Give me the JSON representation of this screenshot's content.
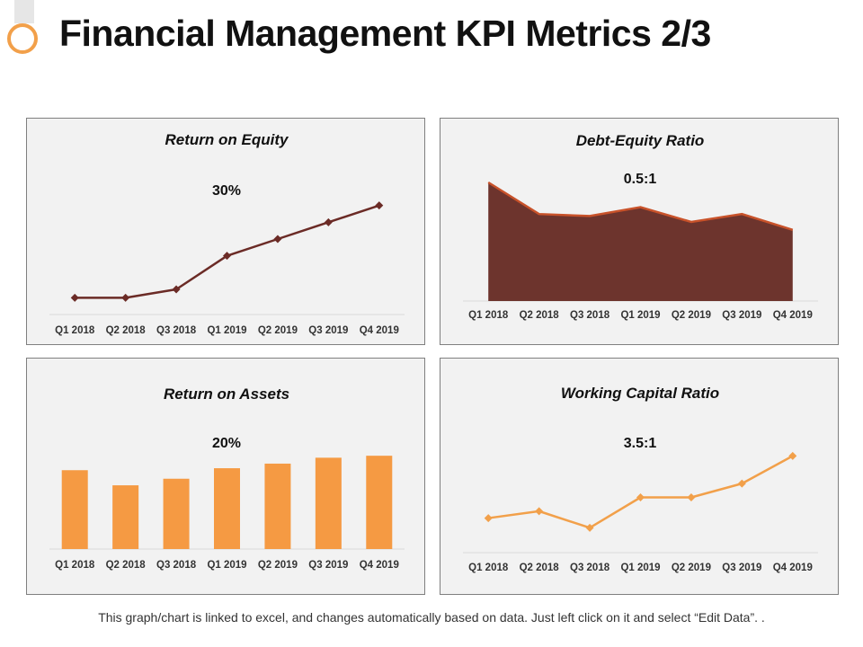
{
  "page": {
    "title": "Financial Management KPI Metrics 2/3",
    "footer": "This graph/chart is linked to excel, and changes automatically  based on data. Just left click on it and select “Edit Data”. ."
  },
  "colors": {
    "accent_orange": "#f2a04a",
    "dark_line": "#6b2b26",
    "area_fill": "#6d342d",
    "area_edge": "#c8522a",
    "bar_orange": "#f59a43",
    "panel_bg": "#f2f2f2"
  },
  "chart_data": [
    {
      "id": "roe",
      "type": "line",
      "title": "Return on Equity",
      "kpi": "30%",
      "categories": [
        "Q1 2018",
        "Q2 2018",
        "Q3 2018",
        "Q1 2019",
        "Q2 2019",
        "Q3 2019",
        "Q4 2019"
      ],
      "values": [
        2,
        2,
        3,
        7,
        9,
        11,
        13
      ],
      "ylim": [
        0,
        15
      ],
      "marker": "diamond",
      "color": "#6b2b26"
    },
    {
      "id": "de",
      "type": "area",
      "title": "Debt-Equity Ratio",
      "kpi": "0.5:1",
      "categories": [
        "Q1 2018",
        "Q2 2018",
        "Q3 2018",
        "Q1 2019",
        "Q2 2019",
        "Q3 2019",
        "Q4 2019"
      ],
      "values": [
        120,
        88,
        86,
        95,
        80,
        88,
        72
      ],
      "ylim": [
        0,
        130
      ],
      "color": "#6d342d"
    },
    {
      "id": "roa",
      "type": "bar",
      "title": "Return on Assets",
      "kpi": "20%",
      "categories": [
        "Q1 2018",
        "Q2 2018",
        "Q3 2018",
        "Q1 2019",
        "Q2 2019",
        "Q3 2019",
        "Q4 2019"
      ],
      "values": [
        12,
        9.7,
        10.7,
        12.3,
        13,
        13.9,
        14.2
      ],
      "ylim": [
        0,
        16
      ],
      "color": "#f59a43"
    },
    {
      "id": "wcr",
      "type": "line",
      "title": "Working Capital Ratio",
      "kpi": "3.5:1",
      "categories": [
        "Q1 2018",
        "Q2 2018",
        "Q3 2018",
        "Q1 2019",
        "Q2 2019",
        "Q3 2019",
        "Q4 2019"
      ],
      "values": [
        2.5,
        3,
        1.8,
        4,
        4,
        5,
        7
      ],
      "ylim": [
        0,
        8
      ],
      "marker": "diamond",
      "color": "#f2a04a"
    }
  ]
}
